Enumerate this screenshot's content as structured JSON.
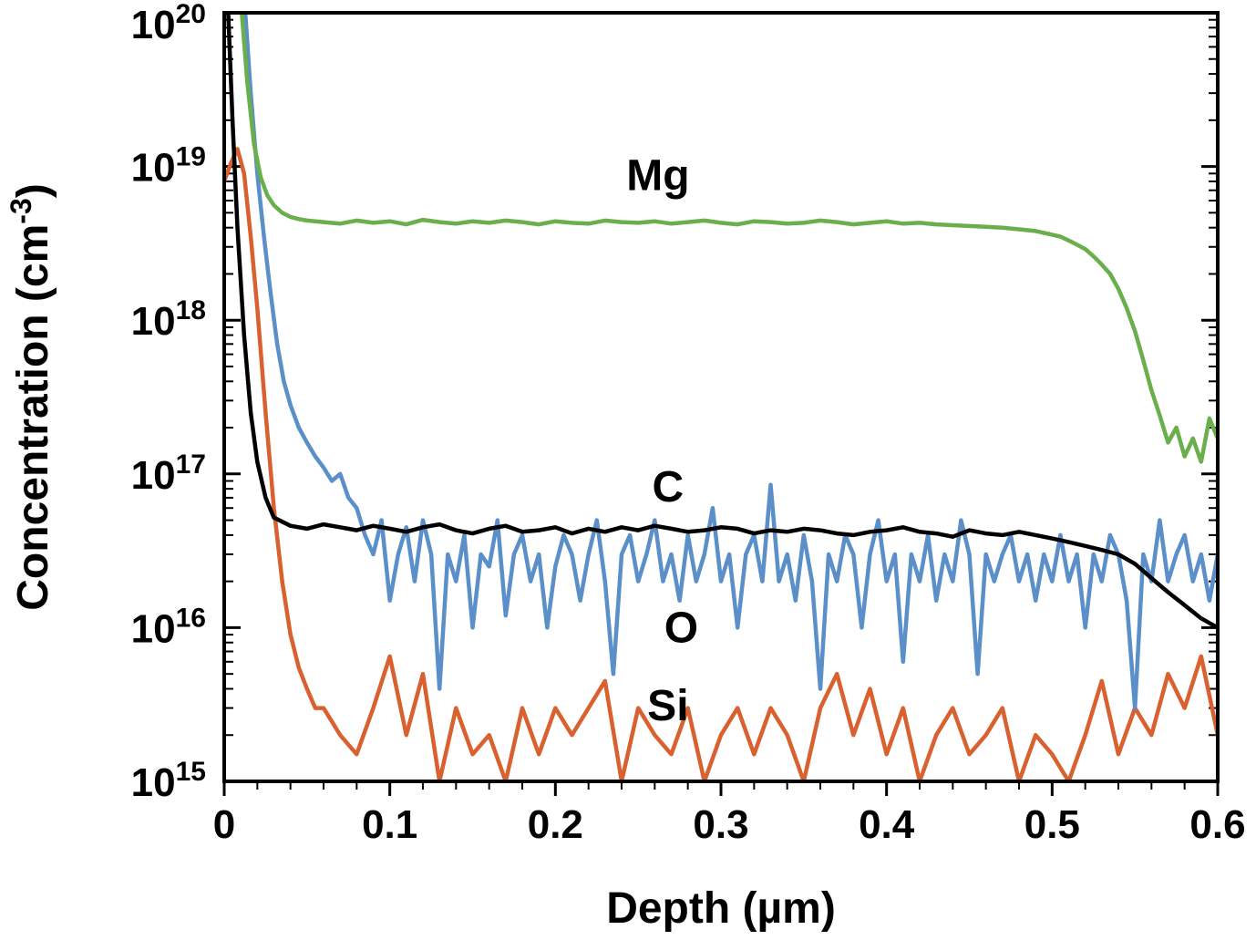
{
  "chart_data": {
    "type": "line",
    "title": "",
    "xlabel": "Depth (µm)",
    "ylabel": {
      "pre": "Concentration (cm",
      "sup": "-3",
      "post": ")"
    },
    "xlim": [
      0,
      0.6
    ],
    "ylog_min": 15,
    "ylog_max": 20,
    "grid": false,
    "legend": "inline-labels",
    "x_ticks": [
      {
        "v": 0.0,
        "label": "0"
      },
      {
        "v": 0.1,
        "label": "0.1"
      },
      {
        "v": 0.2,
        "label": "0.2"
      },
      {
        "v": 0.3,
        "label": "0.3"
      },
      {
        "v": 0.4,
        "label": "0.4"
      },
      {
        "v": 0.5,
        "label": "0.5"
      },
      {
        "v": 0.6,
        "label": "0.6"
      }
    ],
    "x_minor_step": 0.02,
    "y_ticks_exponents": [
      15,
      16,
      17,
      18,
      19,
      20
    ],
    "series": [
      {
        "name": "Si",
        "color": "#d9602f",
        "label_pos": {
          "x": 0.268,
          "y": 2500000000000000.0
        },
        "segments": [
          {
            "points": [
              [
                0.0,
                8e+18
              ],
              [
                0.004,
                1.05e+19
              ],
              [
                0.008,
                1.3e+19
              ],
              [
                0.012,
                9e+18
              ],
              [
                0.016,
                3.5e+18
              ],
              [
                0.02,
                1.2e+18
              ],
              [
                0.025,
                2.5e+17
              ],
              [
                0.03,
                6e+16
              ],
              [
                0.035,
                2e+16
              ],
              [
                0.04,
                9000000000000000.0
              ],
              [
                0.045,
                5500000000000000.0
              ],
              [
                0.05,
                4000000000000000.0
              ],
              [
                0.055,
                3000000000000000.0
              ]
            ]
          },
          {
            "x0": 0.06,
            "dx": 0.01,
            "scale": 1000000000000000.0,
            "v": [
              3.0,
              2.0,
              1.5,
              3.0,
              6.5,
              2.0,
              5.0,
              1.0,
              3.0,
              1.5,
              2.0,
              1.0,
              3.0,
              1.5,
              3.0,
              2.0,
              3.0,
              4.5,
              1.0,
              3.0,
              2.0,
              1.5,
              3.0,
              1.0,
              2.0,
              3.0,
              1.5,
              3.0,
              2.0,
              1.0,
              3.0,
              5.0,
              2.0,
              4.0,
              1.5,
              3.0,
              1.0,
              2.0,
              3.0,
              1.5,
              2.0,
              3.0,
              1.0,
              2.0,
              1.5,
              1.0,
              2.0,
              4.5,
              1.5,
              3.0,
              2.0,
              5.0,
              3.0,
              6.5,
              2.0
            ]
          }
        ]
      },
      {
        "name": "O",
        "color": "#5b8fc9",
        "label_pos": {
          "x": 0.276,
          "y": 8000000000000000.0
        },
        "segments": [
          {
            "points": [
              [
                0.012,
                1.3e+20
              ],
              [
                0.016,
                3e+19
              ],
              [
                0.02,
                9e+18
              ],
              [
                0.024,
                3.5e+18
              ],
              [
                0.028,
                1.5e+18
              ],
              [
                0.032,
                7e+17
              ],
              [
                0.036,
                4e+17
              ],
              [
                0.04,
                2.8e+17
              ],
              [
                0.045,
                2e+17
              ],
              [
                0.05,
                1.6e+17
              ],
              [
                0.055,
                1.3e+17
              ],
              [
                0.06,
                1.1e+17
              ],
              [
                0.065,
                9e+16
              ],
              [
                0.07,
                1e+17
              ],
              [
                0.075,
                7e+16
              ]
            ]
          },
          {
            "x0": 0.08,
            "dx": 0.005,
            "scale": 1e+16,
            "v": [
              6.0,
              4.0,
              3.0,
              5.0,
              1.5,
              3.0,
              4.5,
              2.0,
              5.0,
              3.0,
              0.4,
              3.0,
              2.0,
              4.0,
              1.0,
              3.0,
              2.5,
              5.0,
              1.2,
              3.0,
              4.0,
              2.0,
              3.0,
              1.0,
              2.5,
              4.0,
              3.0,
              1.5,
              3.0,
              5.0,
              2.0,
              0.5,
              3.0,
              4.0,
              2.0,
              3.0,
              5.0,
              2.0,
              3.0,
              1.5,
              4.0,
              2.0,
              3.0,
              6.0,
              2.0,
              3.0,
              1.0,
              3.0,
              4.0,
              2.0,
              8.5,
              2.0,
              3.0,
              1.5,
              4.0,
              2.0,
              0.4,
              3.0,
              2.0,
              4.0,
              3.0,
              1.0,
              3.0,
              5.0,
              2.0,
              3.0,
              0.6,
              3.0,
              2.0,
              4.0,
              1.5,
              3.0,
              2.0,
              5.0,
              3.0,
              0.5,
              3.0,
              2.0,
              3.0,
              4.0,
              2.0,
              3.0,
              1.5,
              3.0,
              2.0,
              4.0,
              2.0,
              3.0,
              1.0,
              3.0,
              2.0,
              4.0,
              3.0,
              1.5,
              0.3,
              3.0,
              2.0,
              5.0,
              2.0,
              3.0,
              4.0,
              2.0,
              3.0,
              1.5,
              3.0
            ]
          }
        ]
      },
      {
        "name": "C",
        "color": "#000000",
        "label_pos": {
          "x": 0.268,
          "y": 6.6e+16
        },
        "segments": [
          {
            "points": [
              [
                0.002,
                1.3e+20
              ],
              [
                0.005,
                2e+19
              ],
              [
                0.008,
                4e+18
              ],
              [
                0.012,
                8e+17
              ],
              [
                0.016,
                2.5e+17
              ],
              [
                0.02,
                1.2e+17
              ],
              [
                0.025,
                7e+16
              ],
              [
                0.03,
                5.2e+16
              ]
            ]
          },
          {
            "x0": 0.04,
            "dx": 0.01,
            "scale": 1e+16,
            "v": [
              4.6,
              4.4,
              4.7,
              4.5,
              4.3,
              4.6,
              4.4,
              4.2,
              4.5,
              4.7,
              4.3,
              4.1,
              4.4,
              4.6,
              4.2,
              4.3,
              4.5,
              4.1,
              4.4,
              4.2,
              4.5,
              4.3,
              4.6,
              4.4,
              4.2,
              4.3,
              4.5,
              4.4,
              4.1,
              4.3,
              4.2,
              4.4,
              4.3,
              4.1,
              4.0,
              4.2,
              4.3,
              4.5,
              4.2,
              4.1,
              3.9,
              4.3,
              4.1,
              4.0,
              4.2,
              4.0,
              3.8
            ]
          },
          {
            "points": [
              [
                0.51,
                3.6e+16
              ],
              [
                0.52,
                3.4e+16
              ],
              [
                0.53,
                3.2e+16
              ],
              [
                0.54,
                3e+16
              ],
              [
                0.55,
                2.6e+16
              ],
              [
                0.56,
                2.1e+16
              ],
              [
                0.57,
                1.7e+16
              ],
              [
                0.58,
                1.4e+16
              ],
              [
                0.59,
                1.15e+16
              ],
              [
                0.6,
                1e+16
              ]
            ]
          }
        ]
      },
      {
        "name": "Mg",
        "color": "#6aaf4b",
        "label_pos": {
          "x": 0.262,
          "y": 7e+18
        },
        "segments": [
          {
            "points": [
              [
                0.01,
                1.2e+20
              ],
              [
                0.014,
                3.5e+19
              ],
              [
                0.018,
                1.4e+19
              ],
              [
                0.022,
                8.5e+18
              ],
              [
                0.026,
                6.5e+18
              ],
              [
                0.03,
                5.6e+18
              ],
              [
                0.035,
                5e+18
              ],
              [
                0.04,
                4.7e+18
              ],
              [
                0.045,
                4.55e+18
              ],
              [
                0.05,
                4.45e+18
              ]
            ]
          },
          {
            "x0": 0.06,
            "dx": 0.01,
            "scale": 1e+18,
            "v": [
              4.35,
              4.25,
              4.45,
              4.3,
              4.4,
              4.2,
              4.5,
              4.35,
              4.25,
              4.4,
              4.3,
              4.45,
              4.35,
              4.2,
              4.4,
              4.3,
              4.25,
              4.45,
              4.35,
              4.3,
              4.4,
              4.25,
              4.35,
              4.45,
              4.3,
              4.2,
              4.4,
              4.35,
              4.25,
              4.3,
              4.45,
              4.35,
              4.2,
              4.3,
              4.4,
              4.25,
              4.3,
              4.2,
              4.15,
              4.1
            ]
          },
          {
            "points": [
              [
                0.46,
                4.05e+18
              ],
              [
                0.47,
                4e+18
              ],
              [
                0.48,
                3.9e+18
              ],
              [
                0.49,
                3.8e+18
              ],
              [
                0.5,
                3.6e+18
              ],
              [
                0.505,
                3.5e+18
              ],
              [
                0.51,
                3.3e+18
              ],
              [
                0.515,
                3.1e+18
              ],
              [
                0.52,
                2.9e+18
              ],
              [
                0.525,
                2.6e+18
              ],
              [
                0.53,
                2.3e+18
              ],
              [
                0.535,
                2e+18
              ],
              [
                0.54,
                1.6e+18
              ],
              [
                0.545,
                1.2e+18
              ],
              [
                0.55,
                8.5e+17
              ],
              [
                0.555,
                5.5e+17
              ],
              [
                0.56,
                3.5e+17
              ],
              [
                0.565,
                2.4e+17
              ],
              [
                0.57,
                1.6e+17
              ],
              [
                0.575,
                2e+17
              ],
              [
                0.58,
                1.3e+17
              ],
              [
                0.585,
                1.7e+17
              ],
              [
                0.59,
                1.2e+17
              ],
              [
                0.595,
                2.3e+17
              ],
              [
                0.6,
                1.7e+17
              ]
            ]
          }
        ]
      }
    ]
  }
}
